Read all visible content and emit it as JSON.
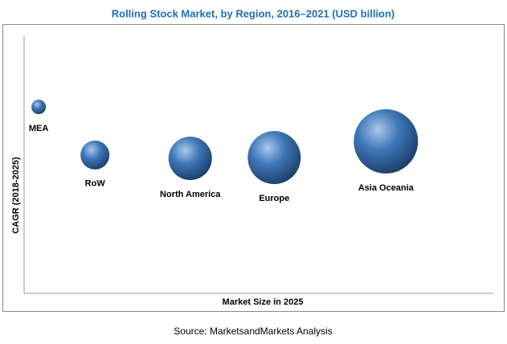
{
  "chart_data": {
    "type": "bubble",
    "title": "Rolling Stock Market, by Region, 2016–2021 (USD billion)",
    "x_label": "Market Size in 2025",
    "y_label": "CAGR (2018-2025)",
    "source": "Source: MarketsandMarkets Analysis",
    "color": "#3f78b8",
    "xlim": [
      0,
      100
    ],
    "ylim": [
      0,
      100
    ],
    "categories": [
      "MEA",
      "RoW",
      "North America",
      "Europe",
      "Asia Oceania"
    ],
    "x": [
      3.1,
      15.1,
      35.4,
      53.3,
      77.1
    ],
    "values": [
      72.5,
      53.8,
      52.5,
      52.8,
      59.1
    ],
    "sizes": [
      9,
      18,
      27,
      33,
      40
    ]
  }
}
